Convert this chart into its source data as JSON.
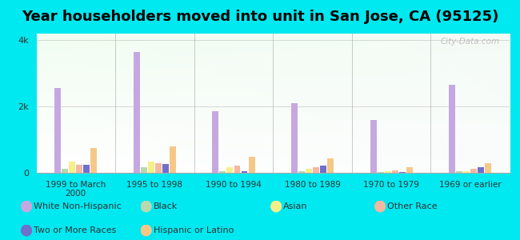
{
  "title": "Year householders moved into unit in San Jose, CA (95125)",
  "categories": [
    "1999 to March\n2000",
    "1995 to 1998",
    "1990 to 1994",
    "1980 to 1989",
    "1970 to 1979",
    "1969 or earlier"
  ],
  "series": {
    "White Non-Hispanic": [
      2550,
      3650,
      1850,
      2100,
      1600,
      2650
    ],
    "Black": [
      120,
      180,
      60,
      50,
      30,
      40
    ],
    "Asian": [
      350,
      330,
      170,
      130,
      50,
      60
    ],
    "Other Race": [
      250,
      290,
      210,
      170,
      80,
      110
    ],
    "Two or More Races": [
      230,
      260,
      40,
      210,
      20,
      160
    ],
    "Hispanic or Latino": [
      750,
      800,
      480,
      430,
      180,
      290
    ]
  },
  "colors": {
    "White Non-Hispanic": "#c5a8e0",
    "Black": "#b8d8b0",
    "Asian": "#f5ef8a",
    "Other Race": "#f5b8a0",
    "Two or More Races": "#7070cc",
    "Hispanic or Latino": "#f5c888"
  },
  "bar_order": [
    "White Non-Hispanic",
    "Black",
    "Asian",
    "Other Race",
    "Two or More Races",
    "Hispanic or Latino"
  ],
  "ylim": [
    0,
    4200
  ],
  "yticks": [
    0,
    2000,
    4000
  ],
  "ytick_labels": [
    "0",
    "2k",
    "4k"
  ],
  "background_color": "#00e8f0",
  "watermark": "City-Data.com",
  "title_fontsize": 13,
  "legend_fontsize": 8,
  "legend_row1": [
    "White Non-Hispanic",
    "Black",
    "Asian",
    "Other Race"
  ],
  "legend_row2": [
    "Two or More Races",
    "Hispanic or Latino"
  ]
}
